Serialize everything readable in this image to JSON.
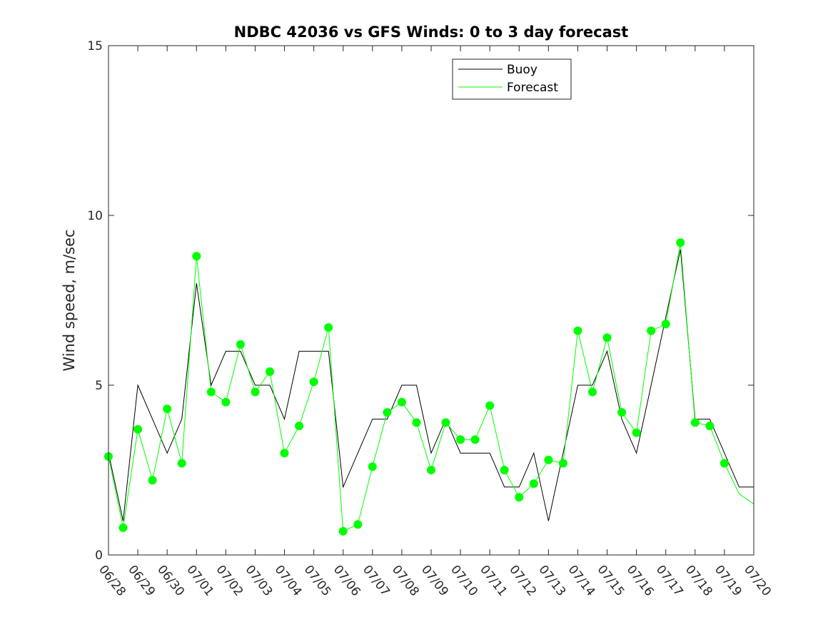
{
  "chart_data": {
    "type": "line",
    "title": "NDBC 42036 vs GFS Winds: 0 to 3 day forecast",
    "xlabel": "",
    "ylabel": "Wind speed, m/sec",
    "ylim": [
      0,
      15
    ],
    "yticks": [
      0,
      5,
      10,
      15
    ],
    "xlim": [
      "06/28",
      "07/20"
    ],
    "xtick_labels": [
      "06/28",
      "06/29",
      "06/30",
      "07/01",
      "07/02",
      "07/03",
      "07/04",
      "07/05",
      "07/06",
      "07/07",
      "07/08",
      "07/09",
      "07/10",
      "07/11",
      "07/12",
      "07/13",
      "07/14",
      "07/15",
      "07/16",
      "07/17",
      "07/18",
      "07/19",
      "07/20"
    ],
    "grid": false,
    "legend": {
      "placement": "top-center",
      "entries": [
        {
          "name": "Buoy",
          "color": "#000000"
        },
        {
          "name": "Forecast",
          "color": "#00ff00"
        }
      ]
    },
    "series": [
      {
        "name": "Buoy",
        "color": "#000000",
        "x": [
          "06/28",
          "06/28 12:00",
          "06/29",
          "06/29 12:00",
          "06/30",
          "06/30 12:00",
          "07/01",
          "07/01 12:00",
          "07/02",
          "07/02 12:00",
          "07/03",
          "07/03 12:00",
          "07/04",
          "07/04 12:00",
          "07/05",
          "07/05 12:00",
          "07/06",
          "07/06 12:00",
          "07/07",
          "07/07 12:00",
          "07/08",
          "07/08 12:00",
          "07/09",
          "07/09 12:00",
          "07/10",
          "07/10 12:00",
          "07/11",
          "07/11 12:00",
          "07/12",
          "07/12 12:00",
          "07/13",
          "07/13 12:00",
          "07/14",
          "07/14 12:00",
          "07/15",
          "07/15 12:00",
          "07/16",
          "07/16 12:00",
          "07/17",
          "07/17 12:00",
          "07/18",
          "07/18 12:00",
          "07/19",
          "07/19 12:00",
          "07/20"
        ],
        "values": [
          3,
          1,
          5,
          4,
          3,
          4,
          8,
          5,
          6,
          6,
          5,
          5,
          4,
          6,
          6,
          6,
          2,
          3,
          4,
          4,
          5,
          5,
          3,
          4,
          3,
          3,
          3,
          2,
          2,
          3,
          1,
          3,
          5,
          5,
          6,
          4,
          3,
          5,
          7,
          9,
          4,
          4,
          3,
          2,
          2
        ]
      },
      {
        "name": "Forecast",
        "color": "#00ff00",
        "x": [
          "06/28",
          "06/28 12:00",
          "06/29",
          "06/29 12:00",
          "06/30",
          "06/30 12:00",
          "07/01",
          "07/01 12:00",
          "07/02",
          "07/02 12:00",
          "07/03",
          "07/03 12:00",
          "07/04",
          "07/04 12:00",
          "07/05",
          "07/05 12:00",
          "07/06",
          "07/06 12:00",
          "07/07",
          "07/07 12:00",
          "07/08",
          "07/08 12:00",
          "07/09",
          "07/09 12:00",
          "07/10",
          "07/10 12:00",
          "07/11",
          "07/11 12:00",
          "07/12",
          "07/12 12:00",
          "07/13",
          "07/13 12:00",
          "07/14",
          "07/14 12:00",
          "07/15",
          "07/15 12:00",
          "07/16",
          "07/16 12:00",
          "07/17",
          "07/17 12:00",
          "07/18",
          "07/18 12:00",
          "07/19",
          "07/19 12:00",
          "07/20"
        ],
        "values": [
          2.9,
          0.8,
          3.7,
          2.2,
          4.3,
          2.7,
          8.8,
          4.8,
          4.5,
          6.2,
          4.8,
          5.4,
          3.0,
          3.8,
          5.1,
          6.7,
          0.7,
          0.9,
          2.6,
          4.2,
          4.5,
          3.9,
          2.5,
          3.9,
          3.4,
          3.4,
          4.4,
          2.5,
          1.7,
          2.1,
          2.8,
          2.7,
          6.6,
          4.8,
          6.4,
          4.2,
          3.6,
          6.6,
          6.8,
          9.2,
          3.9,
          3.8,
          2.7,
          1.8,
          1.5
        ]
      }
    ],
    "markers": {
      "name": "Forecast",
      "color": "#00ff00",
      "x": [
        "06/28",
        "06/28 12:00",
        "06/29",
        "06/29 12:00",
        "06/30",
        "06/30 12:00",
        "07/01",
        "07/01 12:00",
        "07/02",
        "07/02 12:00",
        "07/03",
        "07/03 12:00",
        "07/04",
        "07/04 12:00",
        "07/05",
        "07/05 12:00",
        "07/06",
        "07/06 12:00",
        "07/07",
        "07/07 12:00",
        "07/08",
        "07/08 12:00",
        "07/09",
        "07/09 12:00",
        "07/10",
        "07/10 12:00",
        "07/11",
        "07/11 12:00",
        "07/12",
        "07/12 12:00",
        "07/13",
        "07/13 12:00",
        "07/14",
        "07/14 12:00",
        "07/15",
        "07/15 12:00",
        "07/16",
        "07/16 12:00",
        "07/17",
        "07/17 12:00",
        "07/18",
        "07/18 12:00",
        "07/19"
      ],
      "values": [
        2.9,
        0.8,
        3.7,
        2.2,
        4.3,
        2.7,
        8.8,
        4.8,
        4.5,
        6.2,
        4.8,
        5.4,
        3.0,
        3.8,
        5.1,
        6.7,
        0.7,
        0.9,
        2.6,
        4.2,
        4.5,
        3.9,
        2.5,
        3.9,
        3.4,
        3.4,
        4.4,
        2.5,
        1.7,
        2.1,
        2.8,
        2.7,
        6.6,
        4.8,
        6.4,
        4.2,
        3.6,
        6.6,
        6.8,
        9.2,
        3.9,
        3.8,
        2.7
      ]
    }
  }
}
